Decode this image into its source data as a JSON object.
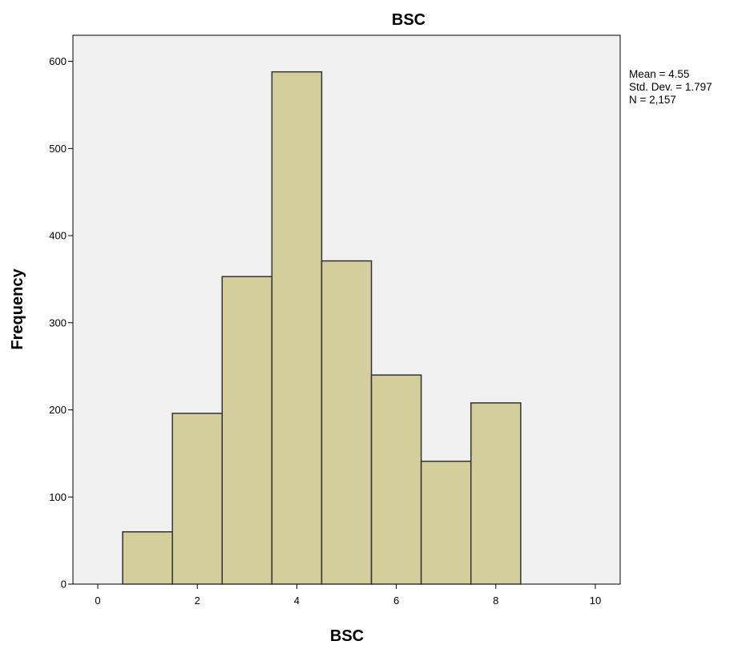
{
  "chart_data": {
    "type": "bar",
    "title": "BSC",
    "xlabel": "BSC",
    "ylabel": "Frequency",
    "xlim": [
      -0.5,
      10.5
    ],
    "ylim": [
      0,
      630
    ],
    "x_ticks": [
      0,
      2,
      4,
      6,
      8,
      10
    ],
    "y_ticks": [
      0,
      100,
      200,
      300,
      400,
      500,
      600
    ],
    "bins": [
      {
        "x": 1,
        "value": 60
      },
      {
        "x": 2,
        "value": 196
      },
      {
        "x": 3,
        "value": 353
      },
      {
        "x": 4,
        "value": 588
      },
      {
        "x": 5,
        "value": 371
      },
      {
        "x": 6,
        "value": 240
      },
      {
        "x": 7,
        "value": 141
      },
      {
        "x": 8,
        "value": 208
      }
    ],
    "bin_width": 1,
    "grid": false,
    "legend": "none",
    "stats": {
      "mean": "Mean = 4.55",
      "std": "Std. Dev. = 1.797",
      "n": "N = 2,157"
    },
    "colors": {
      "plot_background": "#f0f0f0",
      "bar_fill": "#d3ce9b",
      "bar_stroke": "#333333"
    }
  }
}
